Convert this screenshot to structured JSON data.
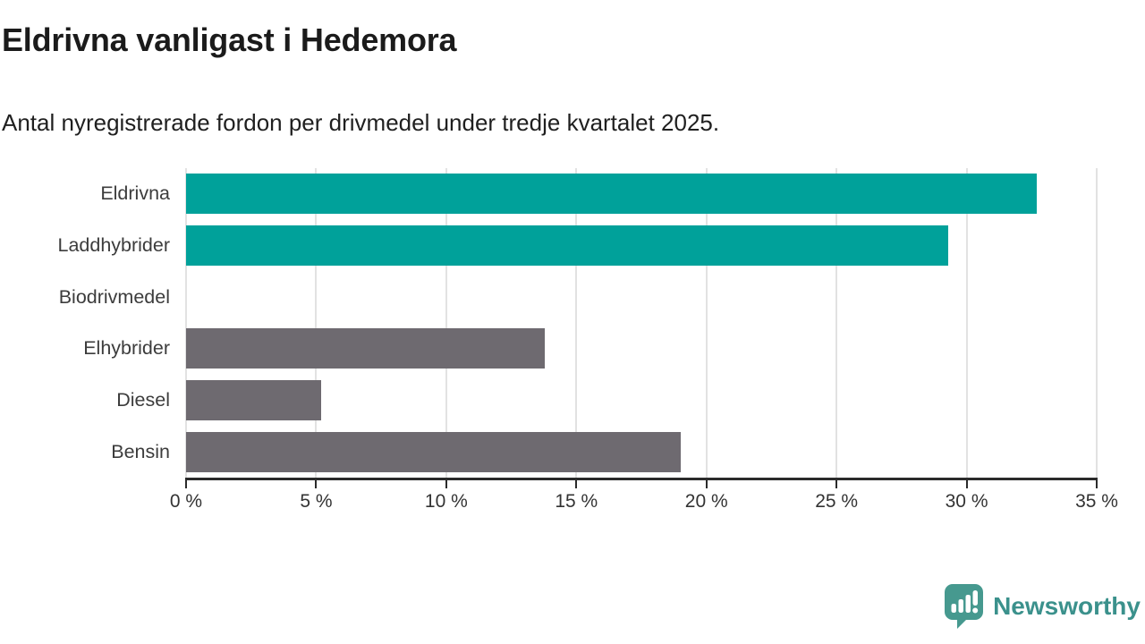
{
  "title": "Eldrivna vanligast i Hedemora",
  "subtitle": "Antal nyregistrerade fordon per drivmedel under tredje kvartalet 2025.",
  "chart_data": {
    "type": "bar",
    "orientation": "horizontal",
    "title": "Eldrivna vanligast i Hedemora",
    "subtitle": "Antal nyregistrerade fordon per drivmedel under tredje kvartalet 2025.",
    "categories": [
      "Eldrivna",
      "Laddhybrider",
      "Biodrivmedel",
      "Elhybrider",
      "Diesel",
      "Bensin"
    ],
    "values": [
      32.7,
      29.3,
      0,
      13.8,
      5.2,
      19.0
    ],
    "unit": "%",
    "xlim": [
      0,
      35
    ],
    "x_tick_labels": [
      "0 %",
      "5 %",
      "10 %",
      "15 %",
      "20 %",
      "25 %",
      "30 %",
      "35 %"
    ],
    "grid": true,
    "legend": "none",
    "highlight_color": "#00a19a",
    "default_color": "#6e6a70",
    "bar_colors": [
      "#00a19a",
      "#00a19a",
      "#6e6a70",
      "#6e6a70",
      "#6e6a70",
      "#6e6a70"
    ]
  },
  "branding": {
    "logo_text": "Newsworthy",
    "logo_color": "#3b918c",
    "icon_color": "#46998f",
    "icon": "speech-bubble-bar-chart-icon"
  }
}
